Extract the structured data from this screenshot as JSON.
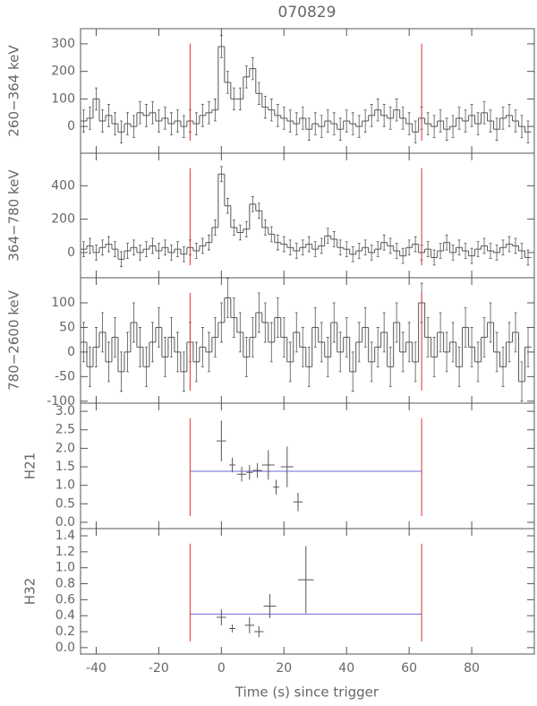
{
  "chart_data": [
    {
      "type": "histogram",
      "title": "070829",
      "ylabel": "260−364 keV",
      "bins": [
        -45,
        -43,
        -41,
        -39,
        -37,
        -35,
        -33,
        -31,
        -29,
        -27,
        -25,
        -23,
        -21,
        -19,
        -17,
        -15,
        -13,
        -11,
        -9,
        -7,
        -5,
        -3,
        -1,
        1,
        3,
        5,
        7,
        9,
        11,
        13,
        15,
        17,
        19,
        21,
        23,
        25,
        27,
        29,
        31,
        33,
        35,
        37,
        39,
        41,
        43,
        45,
        47,
        49,
        51,
        53,
        55,
        57,
        59,
        61,
        63,
        65,
        67,
        69,
        71,
        73,
        75,
        77,
        79,
        81,
        83,
        85,
        87,
        89,
        91,
        93,
        95,
        97,
        99
      ],
      "values": [
        20,
        30,
        100,
        20,
        40,
        10,
        -20,
        10,
        0,
        50,
        40,
        50,
        20,
        30,
        10,
        20,
        0,
        20,
        10,
        40,
        50,
        60,
        290,
        160,
        100,
        100,
        180,
        210,
        120,
        70,
        60,
        40,
        30,
        20,
        10,
        30,
        -10,
        10,
        0,
        20,
        10,
        -10,
        20,
        10,
        0,
        20,
        40,
        60,
        40,
        30,
        60,
        30,
        10,
        -20,
        30,
        10,
        0,
        20,
        -10,
        0,
        30,
        20,
        40,
        10,
        50,
        20,
        -10,
        30,
        40,
        20,
        0,
        -20
      ],
      "error": 40,
      "color": "#555555",
      "marker_color": "#e03030",
      "markers": [
        -10,
        64
      ],
      "xlim": [
        -45,
        100
      ],
      "xticks": [
        -40,
        -20,
        0,
        20,
        40,
        60,
        80
      ],
      "ylim": [
        -97,
        355
      ],
      "yticks": [
        0,
        100,
        200,
        300
      ]
    },
    {
      "type": "histogram",
      "ylabel": "364−780 keV",
      "bins": [
        -45,
        -43,
        -41,
        -39,
        -37,
        -35,
        -33,
        -31,
        -29,
        -27,
        -25,
        -23,
        -21,
        -19,
        -17,
        -15,
        -13,
        -11,
        -9,
        -7,
        -5,
        -3,
        -1,
        1,
        3,
        5,
        7,
        9,
        11,
        13,
        15,
        17,
        19,
        21,
        23,
        25,
        27,
        29,
        31,
        33,
        35,
        37,
        39,
        41,
        43,
        45,
        47,
        49,
        51,
        53,
        55,
        57,
        59,
        61,
        63,
        65,
        67,
        69,
        71,
        73,
        75,
        77,
        79,
        81,
        83,
        85,
        87,
        89,
        91,
        93,
        95,
        97,
        99
      ],
      "values": [
        20,
        40,
        0,
        30,
        50,
        20,
        -40,
        10,
        30,
        0,
        20,
        40,
        10,
        30,
        0,
        20,
        -10,
        30,
        10,
        40,
        60,
        150,
        470,
        280,
        150,
        120,
        140,
        290,
        250,
        150,
        110,
        60,
        50,
        30,
        10,
        30,
        50,
        20,
        40,
        100,
        80,
        30,
        20,
        -10,
        10,
        30,
        0,
        20,
        60,
        40,
        10,
        -20,
        30,
        50,
        0,
        20,
        -30,
        10,
        60,
        0,
        30,
        10,
        -20,
        20,
        40,
        10,
        0,
        30,
        50,
        40,
        10,
        -30
      ],
      "error": 45,
      "color": "#555555",
      "marker_color": "#e03030",
      "markers": [
        -10,
        64
      ],
      "xlim": [
        -45,
        100
      ],
      "xticks": [
        -40,
        -20,
        0,
        20,
        40,
        60,
        80
      ],
      "ylim": [
        -151,
        595
      ],
      "yticks": [
        0,
        200,
        400
      ]
    },
    {
      "type": "histogram",
      "ylabel": "780−2600 keV",
      "bins": [
        -45,
        -43,
        -41,
        -39,
        -37,
        -35,
        -33,
        -31,
        -29,
        -27,
        -25,
        -23,
        -21,
        -19,
        -17,
        -15,
        -13,
        -11,
        -9,
        -7,
        -5,
        -3,
        -1,
        1,
        3,
        5,
        7,
        9,
        11,
        13,
        15,
        17,
        19,
        21,
        23,
        25,
        27,
        29,
        31,
        33,
        35,
        37,
        39,
        41,
        43,
        45,
        47,
        49,
        51,
        53,
        55,
        57,
        59,
        61,
        63,
        65,
        67,
        69,
        71,
        73,
        75,
        77,
        79,
        81,
        83,
        85,
        87,
        89,
        91,
        93,
        95,
        97,
        99
      ],
      "values": [
        20,
        -30,
        10,
        40,
        -20,
        30,
        -40,
        0,
        60,
        10,
        -30,
        20,
        50,
        -10,
        30,
        0,
        -40,
        20,
        -20,
        10,
        0,
        30,
        60,
        110,
        70,
        40,
        -10,
        30,
        80,
        60,
        20,
        70,
        30,
        -20,
        40,
        10,
        -30,
        50,
        20,
        -10,
        60,
        0,
        30,
        -40,
        20,
        50,
        -20,
        10,
        40,
        -30,
        60,
        0,
        20,
        -20,
        100,
        30,
        -10,
        40,
        0,
        20,
        -30,
        50,
        10,
        -20,
        30,
        60,
        0,
        -30,
        20,
        40,
        -60,
        10
      ],
      "error": 40,
      "color": "#555555",
      "marker_color": "#e03030",
      "markers": [
        -10,
        64
      ],
      "xlim": [
        -45,
        100
      ],
      "xticks": [
        -40,
        -20,
        0,
        20,
        40,
        60,
        80
      ],
      "ylim": [
        -104,
        151
      ],
      "yticks": [
        -100,
        -50,
        0,
        50,
        100
      ]
    },
    {
      "type": "errorbar",
      "ylabel": "H21",
      "x": [
        0,
        3.5,
        6.5,
        9,
        11.5,
        15,
        17.5,
        21,
        24.5
      ],
      "xerrors": [
        1.5,
        1,
        1.5,
        1,
        1.5,
        2,
        1,
        2,
        1.5
      ],
      "values": [
        2.2,
        1.55,
        1.3,
        1.35,
        1.4,
        1.55,
        0.95,
        1.5,
        0.55
      ],
      "errors": [
        0.55,
        0.2,
        0.2,
        0.2,
        0.2,
        0.4,
        0.2,
        0.55,
        0.25
      ],
      "mean": 1.38,
      "mean_color": "#6a6ad8",
      "color": "#555555",
      "marker_color": "#e03030",
      "markers": [
        -10,
        64
      ],
      "xlim": [
        -45,
        100
      ],
      "xticks": [
        -40,
        -20,
        0,
        20,
        40,
        60,
        80
      ],
      "ylim": [
        -0.17,
        3.22
      ],
      "yticks": [
        {
          "value": 0,
          "label": "0.0"
        },
        0.5,
        {
          "value": 1,
          "label": "1.0"
        },
        1.5,
        {
          "value": 2,
          "label": "2.0"
        },
        2.5,
        {
          "value": 3,
          "label": "3.0"
        }
      ]
    },
    {
      "type": "errorbar",
      "ylabel": "H32",
      "xlabel": "Time (s) since trigger",
      "x": [
        0,
        3.5,
        9,
        12,
        15.5,
        27
      ],
      "xerrors": [
        1.5,
        1,
        1.5,
        1.5,
        2,
        2.5
      ],
      "values": [
        0.38,
        0.24,
        0.28,
        0.2,
        0.52,
        0.85
      ],
      "errors": [
        0.1,
        0.05,
        0.1,
        0.07,
        0.15,
        0.42
      ],
      "mean": 0.42,
      "mean_color": "#6a6ad8",
      "color": "#555555",
      "marker_color": "#e03030",
      "markers": [
        -10,
        64
      ],
      "xlim": [
        -45,
        100
      ],
      "xticks": [
        -40,
        -20,
        0,
        20,
        40,
        60,
        80
      ],
      "ylim": [
        -0.08,
        1.49
      ],
      "yticks": [
        {
          "value": 0,
          "label": "0.0"
        },
        0.2,
        0.4,
        0.6,
        0.8,
        {
          "value": 1,
          "label": "1.0"
        },
        1.2,
        1.4
      ]
    }
  ]
}
